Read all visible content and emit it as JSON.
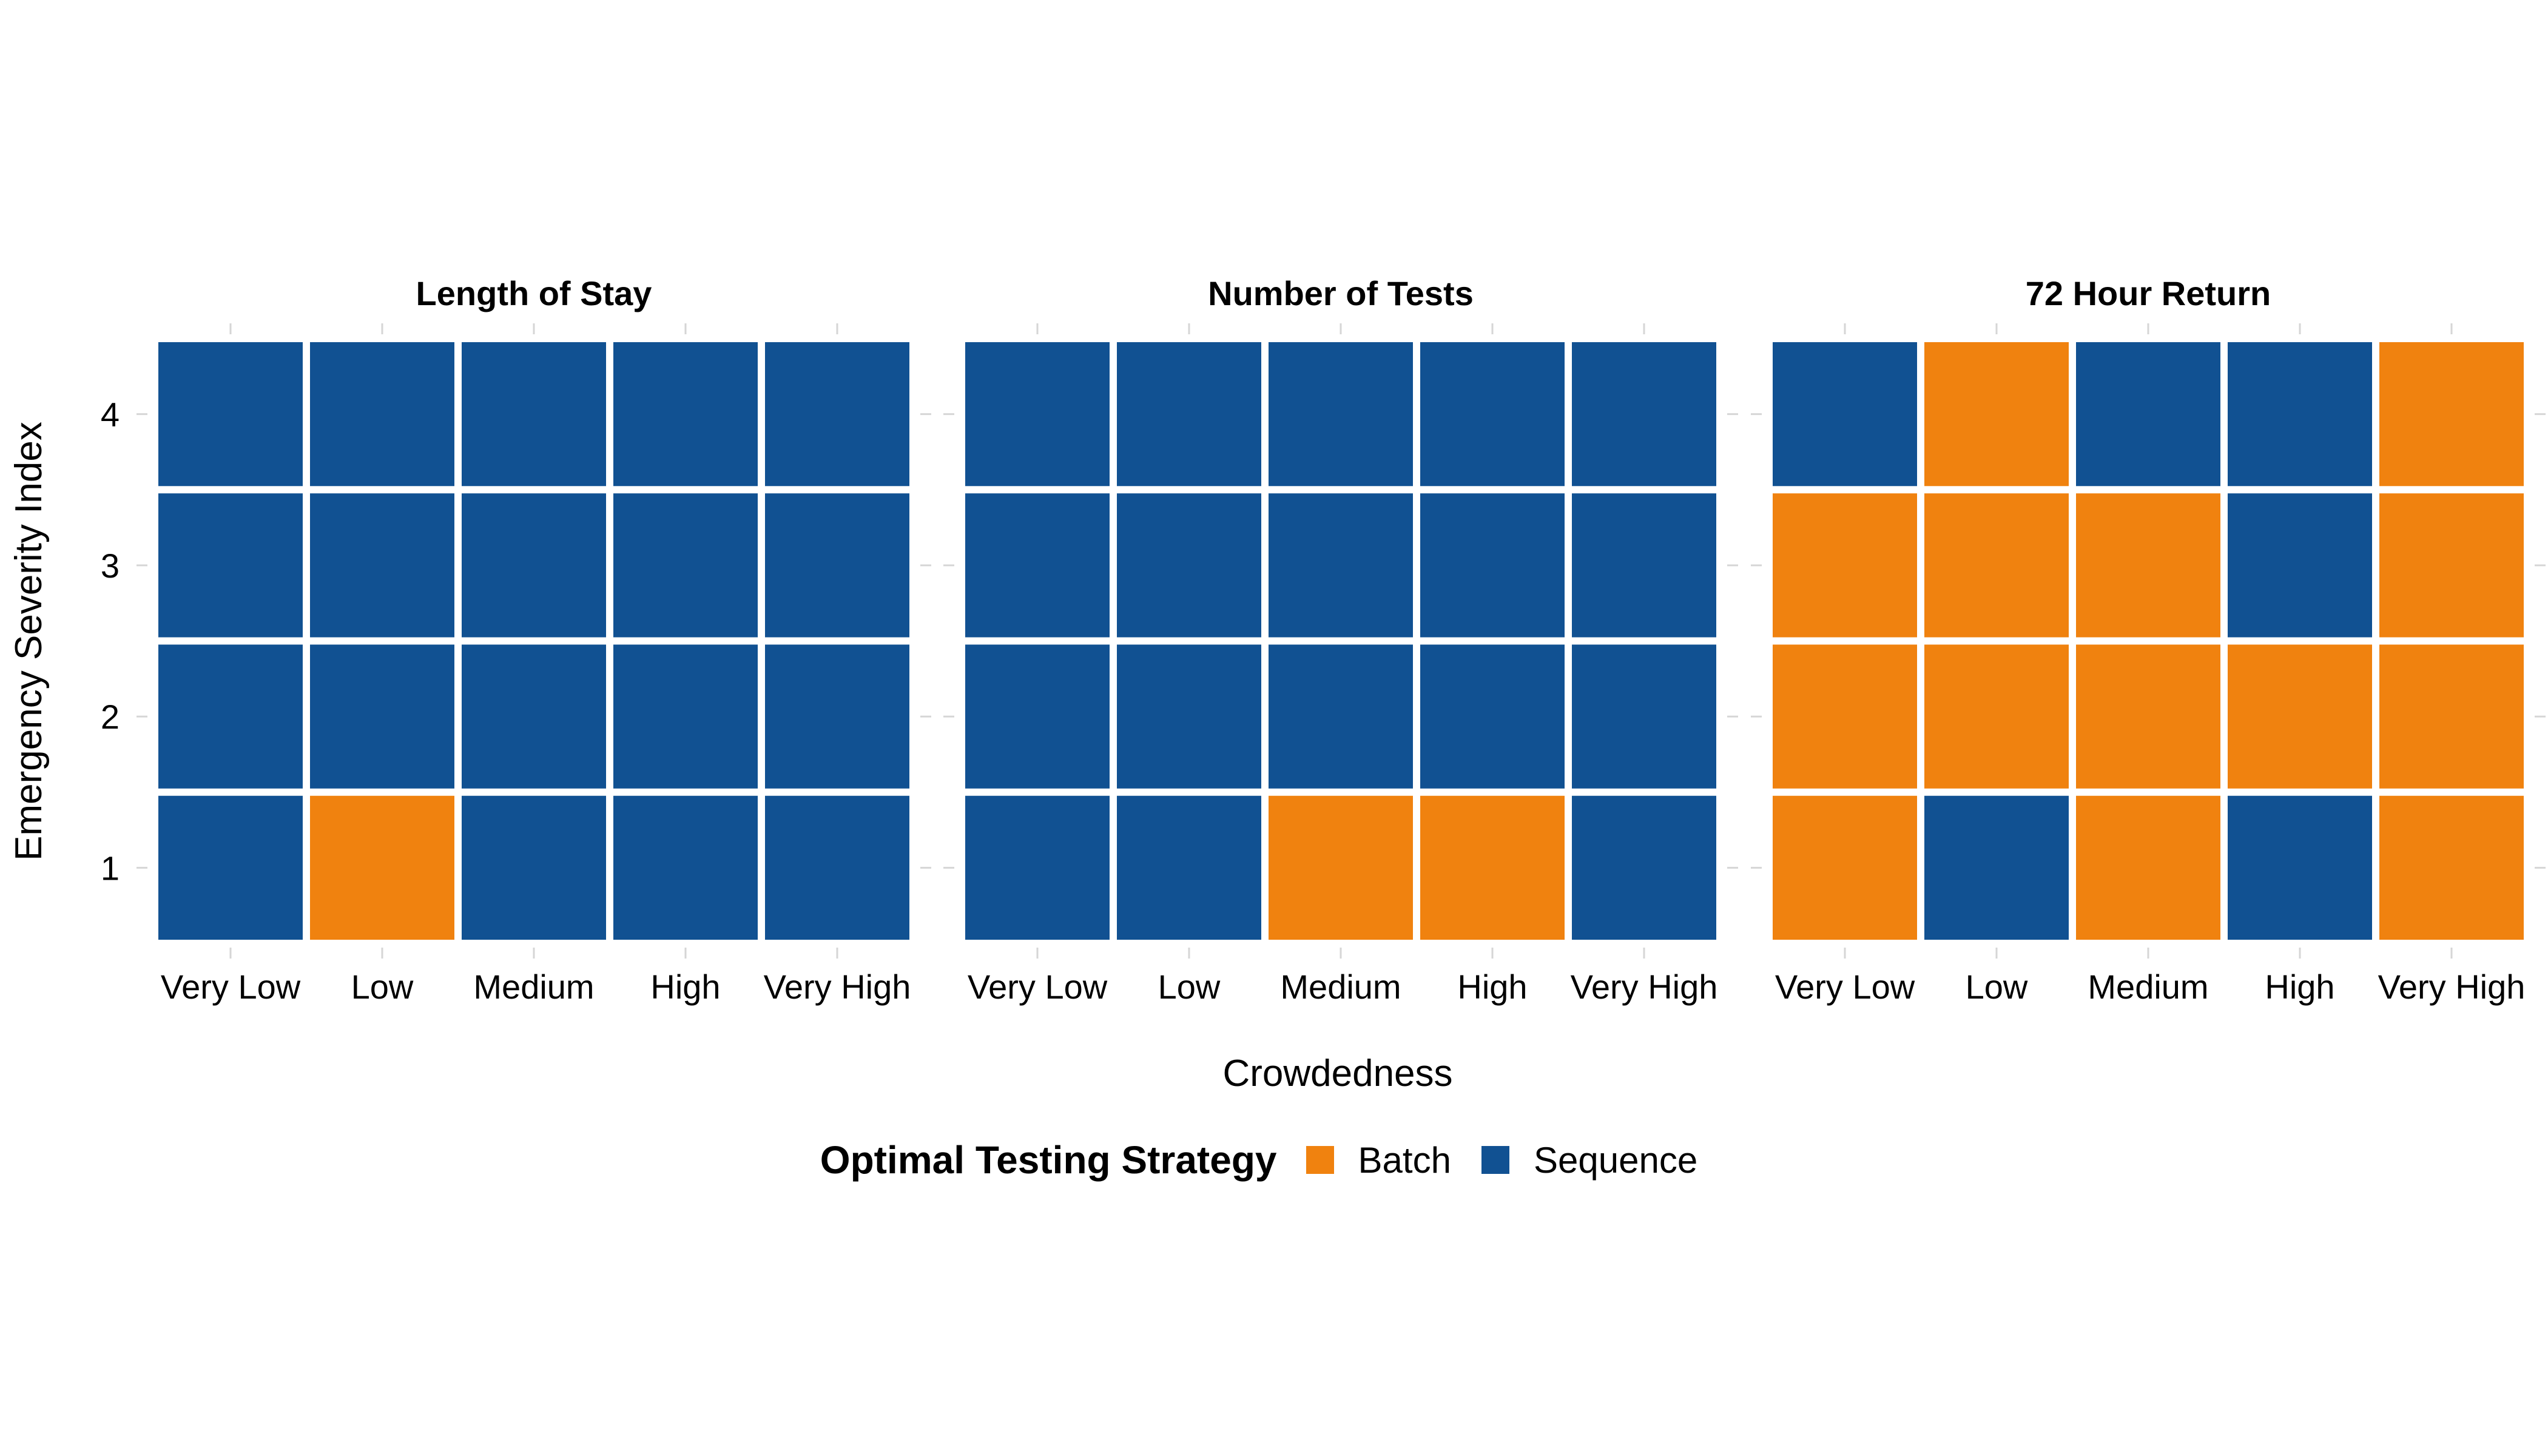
{
  "chart_data": {
    "type": "heatmap",
    "xlabel": "Crowdedness",
    "ylabel": "Emergency Severity Index",
    "x_categories": [
      "Very Low",
      "Low",
      "Medium",
      "High",
      "Very High"
    ],
    "y_categories": [
      "1",
      "2",
      "3",
      "4"
    ],
    "legend": {
      "title": "Optimal Testing Strategy",
      "placement": "bottom",
      "entries": [
        {
          "label": "Batch",
          "color": "#F0820F"
        },
        {
          "label": "Sequence",
          "color": "#115192"
        }
      ]
    },
    "panels": [
      {
        "title": "Length of Stay",
        "cells": {
          "4": [
            "Sequence",
            "Sequence",
            "Sequence",
            "Sequence",
            "Sequence"
          ],
          "3": [
            "Sequence",
            "Sequence",
            "Sequence",
            "Sequence",
            "Sequence"
          ],
          "2": [
            "Sequence",
            "Sequence",
            "Sequence",
            "Sequence",
            "Sequence"
          ],
          "1": [
            "Sequence",
            "Batch",
            "Sequence",
            "Sequence",
            "Sequence"
          ]
        }
      },
      {
        "title": "Number of Tests",
        "cells": {
          "4": [
            "Sequence",
            "Sequence",
            "Sequence",
            "Sequence",
            "Sequence"
          ],
          "3": [
            "Sequence",
            "Sequence",
            "Sequence",
            "Sequence",
            "Sequence"
          ],
          "2": [
            "Sequence",
            "Sequence",
            "Sequence",
            "Sequence",
            "Sequence"
          ],
          "1": [
            "Sequence",
            "Sequence",
            "Batch",
            "Batch",
            "Sequence"
          ]
        }
      },
      {
        "title": "72 Hour Return",
        "cells": {
          "4": [
            "Sequence",
            "Batch",
            "Sequence",
            "Sequence",
            "Batch"
          ],
          "3": [
            "Batch",
            "Batch",
            "Batch",
            "Sequence",
            "Batch"
          ],
          "2": [
            "Batch",
            "Batch",
            "Batch",
            "Batch",
            "Batch"
          ],
          "1": [
            "Batch",
            "Sequence",
            "Batch",
            "Sequence",
            "Batch"
          ]
        }
      }
    ]
  }
}
